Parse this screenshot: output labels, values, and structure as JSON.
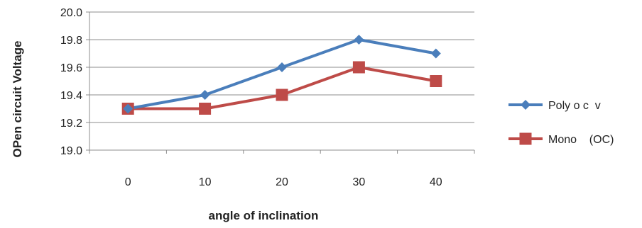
{
  "chart_data": {
    "type": "line",
    "title": "",
    "xlabel": "angle of inclination",
    "ylabel": "OPen circuit  Voltage",
    "categories": [
      "0",
      "10",
      "20",
      "30",
      "40"
    ],
    "ylim": [
      19.0,
      20.0
    ],
    "yticks": [
      "19.0",
      "19.2",
      "19.4",
      "19.6",
      "19.8",
      "20.0"
    ],
    "grid": true,
    "legend_position": "right",
    "series": [
      {
        "name": "Poly o c  v",
        "values": [
          19.3,
          19.4,
          19.6,
          19.8,
          19.7
        ],
        "color": "#4A7EBB",
        "marker": "diamond"
      },
      {
        "name": "Mono    (OC)",
        "values": [
          19.3,
          19.3,
          19.4,
          19.6,
          19.5
        ],
        "color": "#BE4B48",
        "marker": "square"
      }
    ]
  }
}
